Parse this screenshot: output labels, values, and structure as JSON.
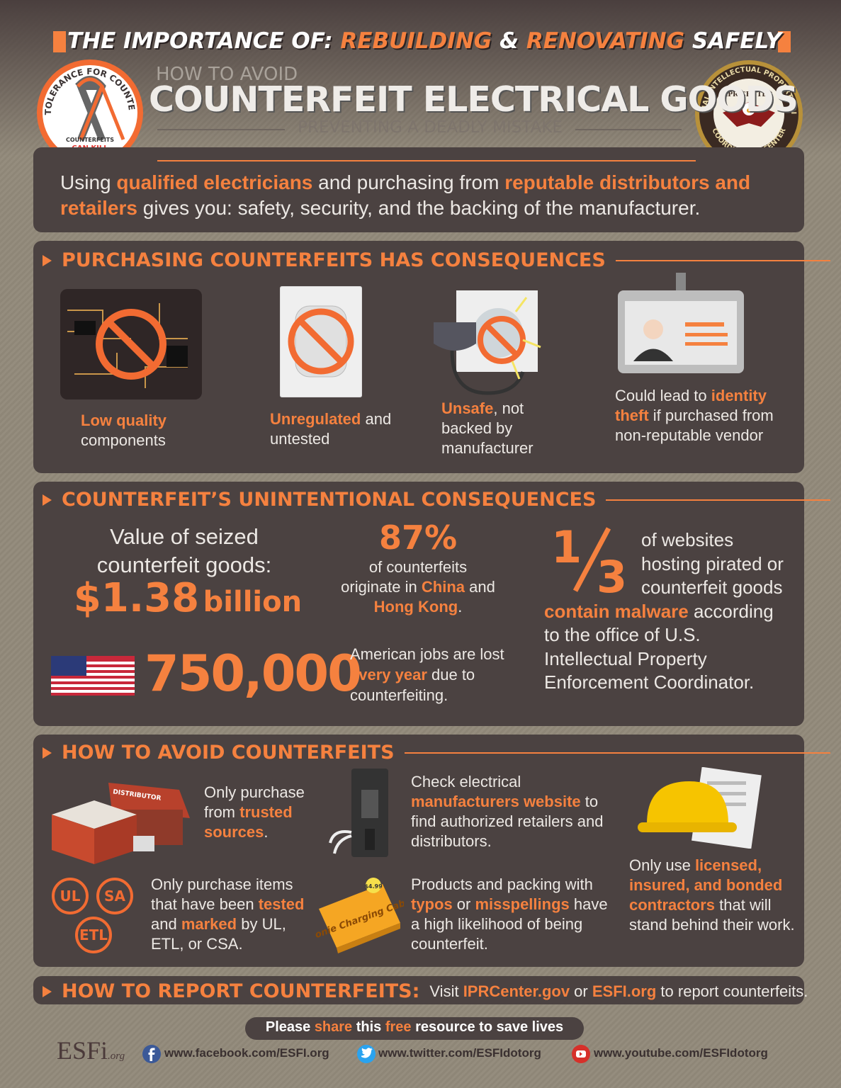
{
  "banner": [
    "THE IMPORTANCE OF: ",
    {
      "text": "REBUILDING",
      "highlight": true
    },
    " & ",
    {
      "text": "RENOVATING",
      "highlight": true
    },
    " SAFELY"
  ],
  "badge_left": {
    "ring": "ZERO TOLERANCE FOR COUNTERFEITS",
    "line1": "COUNTERFEITS",
    "line2": "CAN KILL"
  },
  "badge_right": {
    "ring": "NATIONAL INTELLECTUAL PROPERTY RIGHTS",
    "bottom": "COORDINATION CENTER",
    "center": "IPR CENTER"
  },
  "header": {
    "kicker": "HOW TO AVOID",
    "title": "COUNTERFEIT ELECTRICAL GOODS",
    "subtitle": "PREVENTING A DEADLY MISTAKE"
  },
  "intro": [
    "Using ",
    {
      "text": "qualified electricians",
      "highlight": true
    },
    " and purchasing from ",
    {
      "text": "reputable distributors and retailers",
      "highlight": true
    },
    " gives you: safety, security, and the backing of the manufacturer."
  ],
  "consequences": {
    "heading": "PURCHASING COUNTERFEITS HAS CONSEQUENCES",
    "items": [
      [
        {
          "text": "Low quality",
          "highlight": true
        },
        " components"
      ],
      [
        {
          "text": "Unregulated",
          "highlight": true
        },
        " and untested"
      ],
      [
        {
          "text": "Unsafe",
          "highlight": true
        },
        ", not backed by manufacturer"
      ],
      [
        "Could lead to ",
        {
          "text": "identity theft",
          "highlight": true
        },
        " if purchased from non-reputable vendor"
      ]
    ]
  },
  "unintentional": {
    "heading": "COUNTERFEIT’S UNINTENTIONAL CONSEQUENCES",
    "seized": {
      "label": "Value of seized counterfeit goods:",
      "amount": "$1.38",
      "unit": "billion"
    },
    "origin": {
      "figure": "87%",
      "text": [
        "of counterfeits originate in ",
        {
          "text": "China",
          "highlight": true
        },
        " and ",
        {
          "text": "Hong Kong",
          "highlight": true
        },
        "."
      ]
    },
    "malware": {
      "numerator": "1",
      "denominator": "3",
      "text": [
        "of websites hosting pirated or counterfeit goods ",
        {
          "text": "contain malware",
          "highlight": true
        },
        " according to the office of U.S. Intellectual Property Enforcement Coordinator."
      ]
    },
    "jobs": {
      "figure": "750,000",
      "text": [
        "American jobs are lost ",
        {
          "text": "every year",
          "highlight": true
        },
        " due to counterfeiting."
      ]
    }
  },
  "avoid": {
    "heading": "HOW TO AVOID COUNTERFEITS",
    "tips": [
      [
        "Only purchase from ",
        {
          "text": "trusted sources",
          "highlight": true
        },
        "."
      ],
      [
        "Check electrical ",
        {
          "text": "manufacturers website",
          "highlight": true
        },
        " to find authorized retailers and distributors."
      ],
      [
        "Only use ",
        {
          "text": "licensed, insured, and bonded contractors",
          "highlight": true
        },
        " that will stand behind their work."
      ],
      [
        "Only purchase items that have been ",
        {
          "text": "tested",
          "highlight": true
        },
        " and ",
        {
          "text": "marked",
          "highlight": true
        },
        " by UL, ETL, or CSA."
      ],
      [
        "Products and packing with ",
        {
          "text": "typos",
          "highlight": true
        },
        " or ",
        {
          "text": "misspellings",
          "highlight": true
        },
        " have a high likelihood of being counterfeit."
      ]
    ],
    "icon_labels": {
      "distributor": "DISTRIBUTOR",
      "box": "iPhonie Charging Cable",
      "price": "$4.99"
    }
  },
  "report": {
    "heading": "HOW TO REPORT COUNTERFEITS:",
    "text": [
      " Visit ",
      {
        "text": "IPRCenter.gov",
        "highlight": true
      },
      " or ",
      {
        "text": "ESFI.org",
        "highlight": true
      },
      " to report counterfeits."
    ]
  },
  "footer": {
    "share": [
      "Please ",
      {
        "text": "share",
        "highlight": true
      },
      " this ",
      {
        "text": "free",
        "highlight": true
      },
      " resource to save lives"
    ],
    "logo": "ESFi",
    "logo_suffix": ".org",
    "links": [
      "www.facebook.com/ESFI.org",
      "www.twitter.com/ESFIdotorg",
      "www.youtube.com/ESFIdotorg"
    ]
  }
}
